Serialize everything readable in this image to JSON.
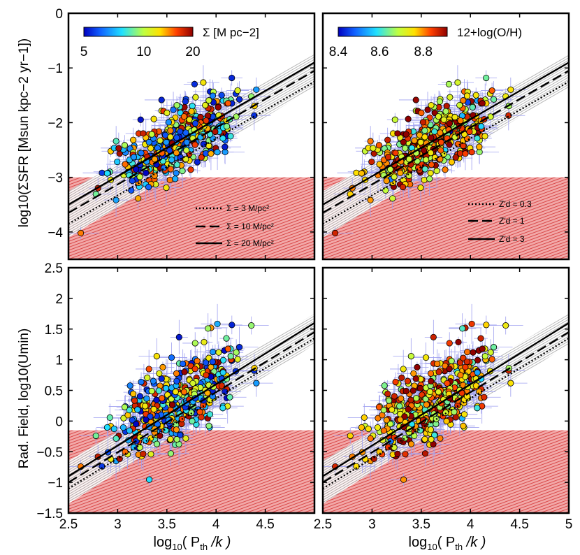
{
  "figure": {
    "x_label_main": "log",
    "x_label_sub": "10",
    "x_label_rest": "( P",
    "x_label_th": "th",
    "x_label_end": " /k )",
    "top_y_label": "log10(ΣSFR [Msun kpc−2 yr−1])",
    "bottom_y_label": "Rad. Field, log10(Umin)"
  },
  "colorbars": [
    {
      "label": "Σ [M pc−2]",
      "ticks": [
        "5",
        "10",
        "20"
      ]
    },
    {
      "label": "12+log(O/H)",
      "ticks": [
        "8.4",
        "8.6",
        "8.8"
      ]
    }
  ],
  "legends": {
    "sigma": [
      "Σ = 3 M/pc²",
      "Σ = 10 M/pc²",
      "Σ = 20 M/pc²"
    ],
    "zd": [
      "Z′d = 0.3",
      "Z′d = 1",
      "Z′d = 3"
    ]
  },
  "colors": {
    "excluded_region": "#e07070",
    "errorbar": "#9fa0f0",
    "band": "#999999"
  },
  "chart_data": [
    {
      "type": "scatter",
      "panel": "top-left",
      "xlim": [
        2.5,
        5.0
      ],
      "ylim": [
        -4.5,
        0
      ],
      "yticks": [
        "0",
        "−1",
        "−2",
        "−3",
        "−4"
      ],
      "xticks": [],
      "excluded_below": -3.0,
      "lines": [
        {
          "name": "Σ = 3 M/pc²",
          "style": "dotted",
          "x": [
            2.5,
            5.0
          ],
          "y": [
            -3.85,
            -1.25
          ]
        },
        {
          "name": "Σ = 10 M/pc²",
          "style": "dashed",
          "x": [
            2.5,
            5.0
          ],
          "y": [
            -3.65,
            -1.05
          ]
        },
        {
          "name": "Σ = 20 M/pc²",
          "style": "solid",
          "x": [
            2.5,
            5.0
          ],
          "y": [
            -3.5,
            -0.9
          ]
        }
      ],
      "color_by": "Σ [M pc−2]"
    },
    {
      "type": "scatter",
      "panel": "top-right",
      "xlim": [
        2.5,
        5.0
      ],
      "ylim": [
        -4.5,
        0
      ],
      "yticks": [],
      "xticks": [],
      "excluded_below": -3.0,
      "lines": [
        {
          "name": "Z′d = 0.3",
          "style": "dotted",
          "x": [
            2.5,
            5.0
          ],
          "y": [
            -3.85,
            -1.25
          ]
        },
        {
          "name": "Z′d = 1",
          "style": "dashed",
          "x": [
            2.5,
            5.0
          ],
          "y": [
            -3.65,
            -1.05
          ]
        },
        {
          "name": "Z′d = 3",
          "style": "solid",
          "x": [
            2.5,
            5.0
          ],
          "y": [
            -3.5,
            -0.9
          ]
        }
      ],
      "color_by": "12+log(O/H)"
    },
    {
      "type": "scatter",
      "panel": "bottom-left",
      "xlim": [
        2.5,
        5.0
      ],
      "ylim": [
        -1.5,
        2.5
      ],
      "yticks": [
        "2.5",
        "2",
        "1.5",
        "1",
        "0.5",
        "0",
        "−0.5",
        "−1",
        "−1.5"
      ],
      "xticks": [
        "2.5",
        "3",
        "3.5",
        "4",
        "4.5"
      ],
      "excluded_below": -0.15,
      "lines": [
        {
          "name": "Σ = 3 M/pc²",
          "style": "dotted",
          "x": [
            2.5,
            5.0
          ],
          "y": [
            -1.1,
            1.35
          ]
        },
        {
          "name": "Σ = 10 M/pc²",
          "style": "dashed",
          "x": [
            2.5,
            5.0
          ],
          "y": [
            -1.0,
            1.45
          ]
        },
        {
          "name": "Σ = 20 M/pc²",
          "style": "solid",
          "x": [
            2.5,
            5.0
          ],
          "y": [
            -0.9,
            1.6
          ]
        }
      ],
      "color_by": "Σ [M pc−2]"
    },
    {
      "type": "scatter",
      "panel": "bottom-right",
      "xlim": [
        2.5,
        5.0
      ],
      "ylim": [
        -1.5,
        2.5
      ],
      "yticks": [],
      "xticks": [
        "2.5",
        "3",
        "3.5",
        "4",
        "4.5",
        "5"
      ],
      "excluded_below": -0.15,
      "lines": [
        {
          "name": "Z′d = 0.3",
          "style": "dotted",
          "x": [
            2.5,
            5.0
          ],
          "y": [
            -1.1,
            1.35
          ]
        },
        {
          "name": "Z′d = 1",
          "style": "dashed",
          "x": [
            2.5,
            5.0
          ],
          "y": [
            -1.0,
            1.45
          ]
        },
        {
          "name": "Z′d = 3",
          "style": "solid",
          "x": [
            2.5,
            5.0
          ],
          "y": [
            -0.9,
            1.6
          ]
        }
      ],
      "color_by": "12+log(O/H)"
    }
  ]
}
